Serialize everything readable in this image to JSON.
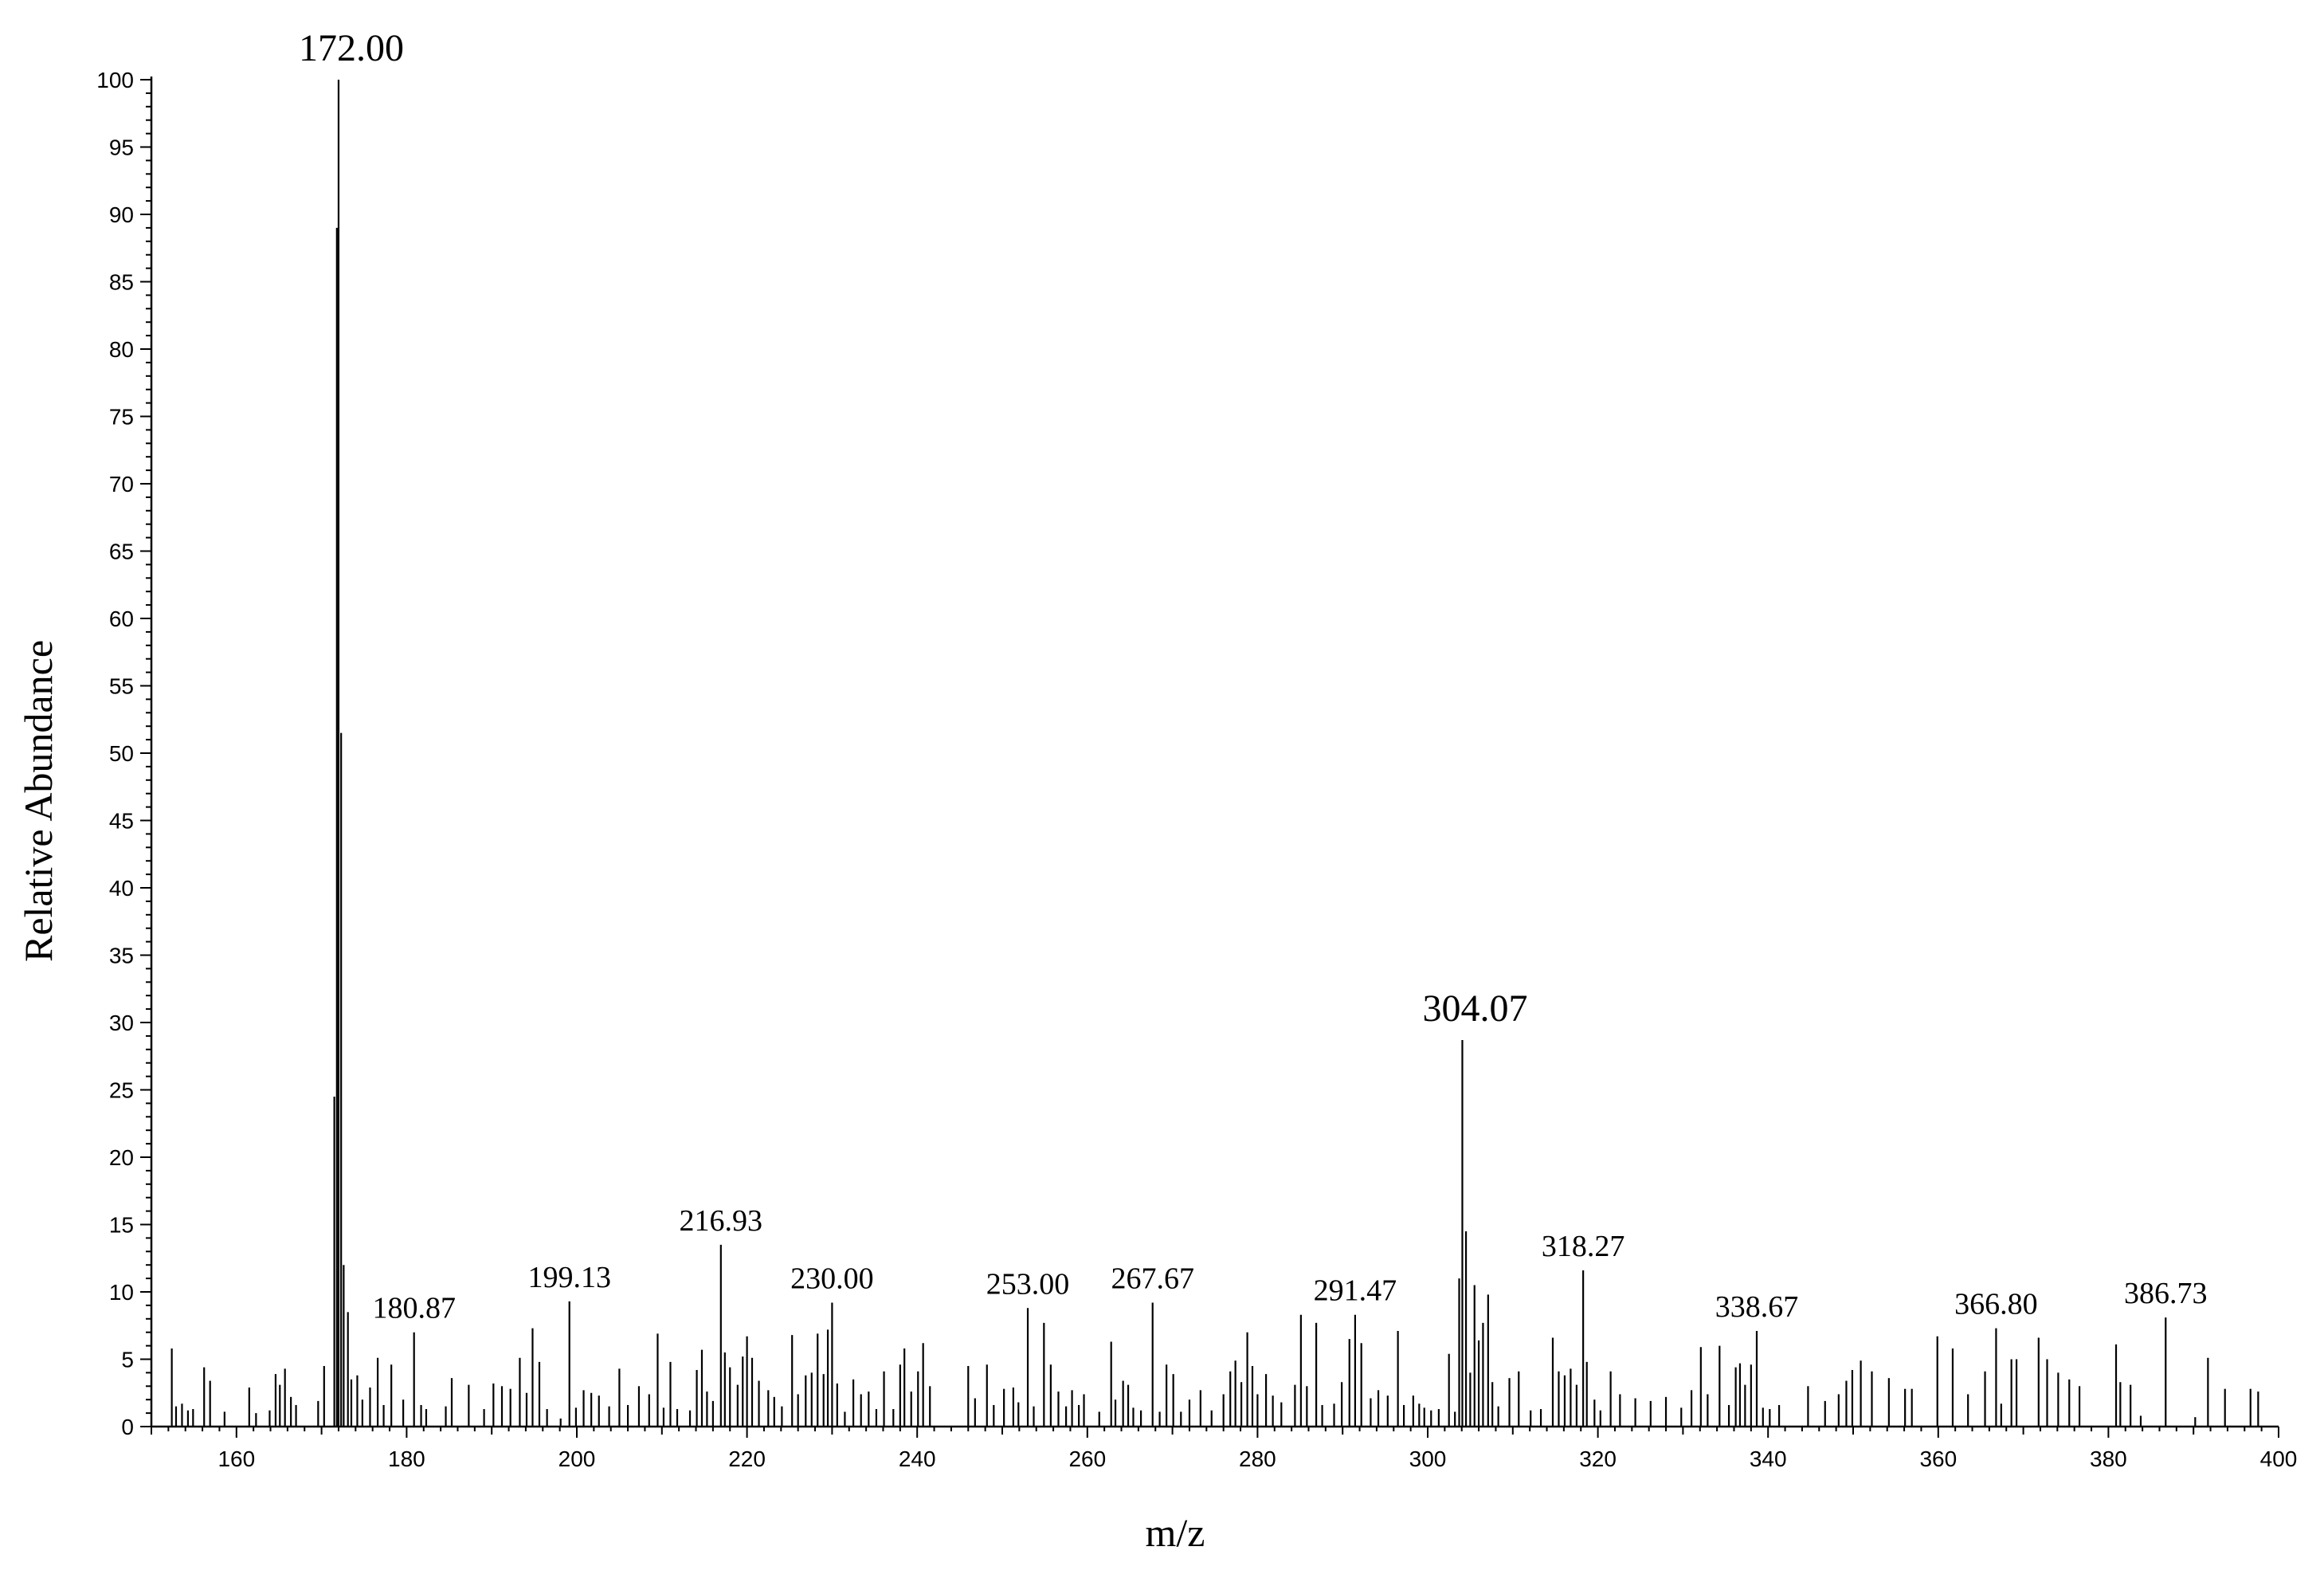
{
  "chart_data": {
    "type": "bar",
    "xlabel": "m/z",
    "ylabel": "Relative Abundance",
    "xlim": [
      150,
      400
    ],
    "ylim": [
      0,
      100
    ],
    "x_ticks": [
      160,
      180,
      200,
      220,
      240,
      260,
      280,
      300,
      320,
      340,
      360,
      380,
      400
    ],
    "y_ticks": [
      0,
      5,
      10,
      15,
      20,
      25,
      30,
      35,
      40,
      45,
      50,
      55,
      60,
      65,
      70,
      75,
      80,
      85,
      90,
      95,
      100
    ],
    "grid": false,
    "annotations": [
      {
        "text": "172.00",
        "x": 172.0,
        "y": 100
      },
      {
        "text": "180.87",
        "x": 180.87,
        "y": 7
      },
      {
        "text": "199.13",
        "x": 199.13,
        "y": 9.3
      },
      {
        "text": "216.93",
        "x": 216.93,
        "y": 13.5
      },
      {
        "text": "230.00",
        "x": 230.0,
        "y": 9.2
      },
      {
        "text": "253.00",
        "x": 253.0,
        "y": 8.8
      },
      {
        "text": "267.67",
        "x": 267.67,
        "y": 9.2
      },
      {
        "text": "291.47",
        "x": 291.47,
        "y": 8.3
      },
      {
        "text": "304.07",
        "x": 304.07,
        "y": 28.7
      },
      {
        "text": "318.27",
        "x": 318.27,
        "y": 11.6
      },
      {
        "text": "338.67",
        "x": 338.67,
        "y": 7.1
      },
      {
        "text": "366.80",
        "x": 366.8,
        "y": 7.3
      },
      {
        "text": "386.73",
        "x": 386.73,
        "y": 8.1
      }
    ],
    "peaks": [
      [
        152.4,
        5.8
      ],
      [
        152.9,
        1.5
      ],
      [
        153.6,
        1.7
      ],
      [
        154.3,
        1.2
      ],
      [
        154.9,
        1.3
      ],
      [
        156.2,
        4.4
      ],
      [
        156.9,
        3.4
      ],
      [
        158.6,
        1.1
      ],
      [
        161.5,
        2.9
      ],
      [
        162.3,
        1.0
      ],
      [
        163.9,
        1.2
      ],
      [
        164.6,
        3.9
      ],
      [
        165.1,
        3.1
      ],
      [
        165.7,
        4.3
      ],
      [
        166.4,
        2.2
      ],
      [
        167.0,
        1.6
      ],
      [
        169.6,
        1.9
      ],
      [
        170.3,
        4.5
      ],
      [
        171.5,
        24.5
      ],
      [
        171.8,
        89.0
      ],
      [
        172.0,
        100
      ],
      [
        172.3,
        51.5
      ],
      [
        172.6,
        12.0
      ],
      [
        173.1,
        8.5
      ],
      [
        173.5,
        3.5
      ],
      [
        174.2,
        3.8
      ],
      [
        174.8,
        2.0
      ],
      [
        175.7,
        2.9
      ],
      [
        176.6,
        5.1
      ],
      [
        177.3,
        1.6
      ],
      [
        178.2,
        4.6
      ],
      [
        179.6,
        2.0
      ],
      [
        180.87,
        7.0
      ],
      [
        181.7,
        1.6
      ],
      [
        182.3,
        1.3
      ],
      [
        184.6,
        1.5
      ],
      [
        185.3,
        3.6
      ],
      [
        187.3,
        3.1
      ],
      [
        189.1,
        1.3
      ],
      [
        190.2,
        3.2
      ],
      [
        191.2,
        3.0
      ],
      [
        192.2,
        2.8
      ],
      [
        193.3,
        5.1
      ],
      [
        194.1,
        2.5
      ],
      [
        194.8,
        7.3
      ],
      [
        195.6,
        4.8
      ],
      [
        196.5,
        1.3
      ],
      [
        198.1,
        0.6
      ],
      [
        199.13,
        9.3
      ],
      [
        199.9,
        1.4
      ],
      [
        200.8,
        2.7
      ],
      [
        201.7,
        2.5
      ],
      [
        202.6,
        2.3
      ],
      [
        203.8,
        1.5
      ],
      [
        205.0,
        4.3
      ],
      [
        206.0,
        1.6
      ],
      [
        207.3,
        3.0
      ],
      [
        208.5,
        2.4
      ],
      [
        209.5,
        6.9
      ],
      [
        210.2,
        1.4
      ],
      [
        211.0,
        4.8
      ],
      [
        211.8,
        1.3
      ],
      [
        213.3,
        1.2
      ],
      [
        214.1,
        4.2
      ],
      [
        214.7,
        5.7
      ],
      [
        215.3,
        2.6
      ],
      [
        216.0,
        1.9
      ],
      [
        216.93,
        13.5
      ],
      [
        217.4,
        5.5
      ],
      [
        218.0,
        4.4
      ],
      [
        218.9,
        3.1
      ],
      [
        219.5,
        5.2
      ],
      [
        220.0,
        6.7
      ],
      [
        220.6,
        5.1
      ],
      [
        221.4,
        3.4
      ],
      [
        222.5,
        2.7
      ],
      [
        223.2,
        2.2
      ],
      [
        224.1,
        1.5
      ],
      [
        225.3,
        6.8
      ],
      [
        226.0,
        2.4
      ],
      [
        226.9,
        3.8
      ],
      [
        227.6,
        4.0
      ],
      [
        228.3,
        6.9
      ],
      [
        229.0,
        3.9
      ],
      [
        229.5,
        7.2
      ],
      [
        230.0,
        9.2
      ],
      [
        230.6,
        3.2
      ],
      [
        231.5,
        1.1
      ],
      [
        232.5,
        3.5
      ],
      [
        233.4,
        2.4
      ],
      [
        234.3,
        2.6
      ],
      [
        235.2,
        1.3
      ],
      [
        236.1,
        4.1
      ],
      [
        237.2,
        1.3
      ],
      [
        238.0,
        4.6
      ],
      [
        238.5,
        5.8
      ],
      [
        239.3,
        2.6
      ],
      [
        240.1,
        4.1
      ],
      [
        240.7,
        6.2
      ],
      [
        241.5,
        3.0
      ],
      [
        246.0,
        4.5
      ],
      [
        246.8,
        2.1
      ],
      [
        248.2,
        4.6
      ],
      [
        249.0,
        1.6
      ],
      [
        250.2,
        2.8
      ],
      [
        251.3,
        2.9
      ],
      [
        251.9,
        1.8
      ],
      [
        253.0,
        8.8
      ],
      [
        253.7,
        1.5
      ],
      [
        254.9,
        7.7
      ],
      [
        255.7,
        4.6
      ],
      [
        256.6,
        2.6
      ],
      [
        257.5,
        1.5
      ],
      [
        258.2,
        2.7
      ],
      [
        259.0,
        1.6
      ],
      [
        259.6,
        2.4
      ],
      [
        261.4,
        1.1
      ],
      [
        262.8,
        6.3
      ],
      [
        263.3,
        2.0
      ],
      [
        264.2,
        3.4
      ],
      [
        264.8,
        3.1
      ],
      [
        265.4,
        1.4
      ],
      [
        266.3,
        1.2
      ],
      [
        267.67,
        9.2
      ],
      [
        268.5,
        1.1
      ],
      [
        269.3,
        4.6
      ],
      [
        270.1,
        3.9
      ],
      [
        271.0,
        1.1
      ],
      [
        272.0,
        2.0
      ],
      [
        273.3,
        2.7
      ],
      [
        274.6,
        1.2
      ],
      [
        276.0,
        2.4
      ],
      [
        276.8,
        4.1
      ],
      [
        277.4,
        4.9
      ],
      [
        278.1,
        3.3
      ],
      [
        278.8,
        7.0
      ],
      [
        279.4,
        4.5
      ],
      [
        280.0,
        2.4
      ],
      [
        281.0,
        3.9
      ],
      [
        281.8,
        2.3
      ],
      [
        282.8,
        1.8
      ],
      [
        284.4,
        3.1
      ],
      [
        285.1,
        8.3
      ],
      [
        285.8,
        3.0
      ],
      [
        286.9,
        7.7
      ],
      [
        287.6,
        1.6
      ],
      [
        289.0,
        1.7
      ],
      [
        289.9,
        3.3
      ],
      [
        290.8,
        6.5
      ],
      [
        291.47,
        8.3
      ],
      [
        292.2,
        6.2
      ],
      [
        293.3,
        2.1
      ],
      [
        294.2,
        2.7
      ],
      [
        295.3,
        2.3
      ],
      [
        296.5,
        7.1
      ],
      [
        297.2,
        1.6
      ],
      [
        298.3,
        2.3
      ],
      [
        299.0,
        1.7
      ],
      [
        299.6,
        1.4
      ],
      [
        300.4,
        1.2
      ],
      [
        301.3,
        1.3
      ],
      [
        302.5,
        5.4
      ],
      [
        303.2,
        1.1
      ],
      [
        303.7,
        11.0
      ],
      [
        304.07,
        28.7
      ],
      [
        304.5,
        14.5
      ],
      [
        305.0,
        4.0
      ],
      [
        305.5,
        10.5
      ],
      [
        306.0,
        6.4
      ],
      [
        306.5,
        7.7
      ],
      [
        307.1,
        9.8
      ],
      [
        307.6,
        3.3
      ],
      [
        308.3,
        1.5
      ],
      [
        309.6,
        3.6
      ],
      [
        310.7,
        4.1
      ],
      [
        312.1,
        1.2
      ],
      [
        313.3,
        1.3
      ],
      [
        314.7,
        6.6
      ],
      [
        315.4,
        4.1
      ],
      [
        316.1,
        3.8
      ],
      [
        316.8,
        4.3
      ],
      [
        317.5,
        3.1
      ],
      [
        318.27,
        11.6
      ],
      [
        318.7,
        4.8
      ],
      [
        319.6,
        2.0
      ],
      [
        320.3,
        1.2
      ],
      [
        321.5,
        4.1
      ],
      [
        322.6,
        2.4
      ],
      [
        324.4,
        2.1
      ],
      [
        326.2,
        1.9
      ],
      [
        328.0,
        2.2
      ],
      [
        329.8,
        1.4
      ],
      [
        331.0,
        2.7
      ],
      [
        332.1,
        5.9
      ],
      [
        332.9,
        2.4
      ],
      [
        334.3,
        6.0
      ],
      [
        335.4,
        1.6
      ],
      [
        336.2,
        4.4
      ],
      [
        336.7,
        4.7
      ],
      [
        337.3,
        3.1
      ],
      [
        338.0,
        4.6
      ],
      [
        338.67,
        7.1
      ],
      [
        339.4,
        1.4
      ],
      [
        340.2,
        1.3
      ],
      [
        341.3,
        1.6
      ],
      [
        344.7,
        3.0
      ],
      [
        346.7,
        1.9
      ],
      [
        348.3,
        2.4
      ],
      [
        349.2,
        3.4
      ],
      [
        349.9,
        4.2
      ],
      [
        350.9,
        4.9
      ],
      [
        352.2,
        4.1
      ],
      [
        354.2,
        3.6
      ],
      [
        356.1,
        2.8
      ],
      [
        356.9,
        2.8
      ],
      [
        359.9,
        6.7
      ],
      [
        361.7,
        5.8
      ],
      [
        363.5,
        2.4
      ],
      [
        365.5,
        4.1
      ],
      [
        366.8,
        7.3
      ],
      [
        367.4,
        1.7
      ],
      [
        368.6,
        5.0
      ],
      [
        369.2,
        5.0
      ],
      [
        371.8,
        6.6
      ],
      [
        372.8,
        5.0
      ],
      [
        374.1,
        4.0
      ],
      [
        375.4,
        3.5
      ],
      [
        376.6,
        3.0
      ],
      [
        380.9,
        6.1
      ],
      [
        381.4,
        3.3
      ],
      [
        382.6,
        3.1
      ],
      [
        383.8,
        0.8
      ],
      [
        386.73,
        8.1
      ],
      [
        390.2,
        0.7
      ],
      [
        391.7,
        5.1
      ],
      [
        393.7,
        2.8
      ],
      [
        396.7,
        2.8
      ],
      [
        397.6,
        2.6
      ]
    ]
  }
}
